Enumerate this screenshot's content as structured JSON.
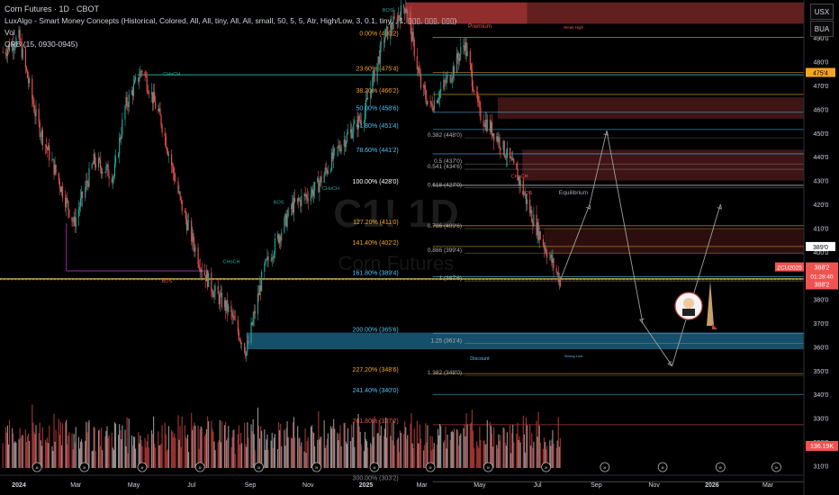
{
  "header": {
    "title": "Corn Futures · 1D · CBOT",
    "indicator1": "LuxAlgo - Smart Money Concepts (Historical, Colored, All, All, tiny, All, All, small, 50, 5, 5, Atr, High/Low, 3, 0.1, tiny, , 1, ▯▯▯, ▯▯▯, ▯▯▯)",
    "indicator2": "Vol",
    "indicator3": "ORB (15, 0930-0945)"
  },
  "currency_button": "USX",
  "unit_button": "BUA",
  "watermark": {
    "line1": "C1! 1D",
    "line2": "Corn Futures"
  },
  "colors": {
    "bull": "#26a69a",
    "bear": "#ef5350",
    "premium": "#b2383b",
    "discount": "#1e6a8c",
    "vol": "#d9d9d9",
    "fib_orange": "#f5a623",
    "fib_blue": "#4fc3f7",
    "eq_line": "#26a69a"
  },
  "chart_data": {
    "type": "candlestick",
    "x_labels": [
      "2024",
      "Mar",
      "May",
      "Jul",
      "Sep",
      "Nov",
      "2025",
      "Mar",
      "May",
      "Jul",
      "Sep",
      "Nov",
      "2026",
      "Mar"
    ],
    "y_ticks": [
      "500'0",
      "490'0",
      "480'0",
      "470'0",
      "460'0",
      "450'0",
      "440'0",
      "430'0",
      "420'0",
      "410'0",
      "400'0",
      "390'0",
      "380'0",
      "370'0",
      "360'0",
      "350'0",
      "340'0",
      "330'0",
      "320'0",
      "310'0"
    ],
    "ylim": [
      306,
      506
    ],
    "price_path": [
      {
        "date": "2023-12-15",
        "price": 484
      },
      {
        "date": "2024-01-01",
        "price": 490
      },
      {
        "date": "2024-01-20",
        "price": 455
      },
      {
        "date": "2024-02-12",
        "price": 430
      },
      {
        "date": "2024-02-28",
        "price": 412
      },
      {
        "date": "2024-03-20",
        "price": 438
      },
      {
        "date": "2024-04-10",
        "price": 432
      },
      {
        "date": "2024-04-22",
        "price": 461
      },
      {
        "date": "2024-05-10",
        "price": 477
      },
      {
        "date": "2024-05-30",
        "price": 455
      },
      {
        "date": "2024-06-20",
        "price": 420
      },
      {
        "date": "2024-07-10",
        "price": 395
      },
      {
        "date": "2024-07-25",
        "price": 383
      },
      {
        "date": "2024-08-10",
        "price": 375
      },
      {
        "date": "2024-08-28",
        "price": 358
      },
      {
        "date": "2024-09-15",
        "price": 392
      },
      {
        "date": "2024-10-15",
        "price": 419
      },
      {
        "date": "2024-11-10",
        "price": 427
      },
      {
        "date": "2024-12-05",
        "price": 445
      },
      {
        "date": "2024-12-30",
        "price": 458
      },
      {
        "date": "2025-01-20",
        "price": 490
      },
      {
        "date": "2025-02-12",
        "price": 504
      },
      {
        "date": "2025-02-28",
        "price": 470
      },
      {
        "date": "2025-03-10",
        "price": 461
      },
      {
        "date": "2025-04-01",
        "price": 475
      },
      {
        "date": "2025-04-15",
        "price": 488
      },
      {
        "date": "2025-05-01",
        "price": 458
      },
      {
        "date": "2025-05-20",
        "price": 448
      },
      {
        "date": "2025-06-10",
        "price": 432
      },
      {
        "date": "2025-06-25",
        "price": 415
      },
      {
        "date": "2025-07-10",
        "price": 401
      },
      {
        "date": "2025-07-25",
        "price": 388
      }
    ],
    "fib_levels": [
      {
        "label": "0.00% (490'2)",
        "price": 490.25,
        "color": "#f5a623"
      },
      {
        "label": "23.60% (475'4)",
        "price": 475.5,
        "color": "#f5a623"
      },
      {
        "label": "38.20% (466'2)",
        "price": 466.25,
        "color": "#f5a623"
      },
      {
        "label": "50.00% (458'6)",
        "price": 458.75,
        "color": "#4fc3f7"
      },
      {
        "label": "61.80% (451'4)",
        "price": 451.5,
        "color": "#4fc3f7"
      },
      {
        "label": "78.60% (441'2)",
        "price": 441.25,
        "color": "#4fc3f7"
      },
      {
        "label": "100.00% (428'0)",
        "price": 428,
        "color": "#ffffff"
      },
      {
        "label": "127.20% (411'0)",
        "price": 411,
        "color": "#f5a623"
      },
      {
        "label": "141.40% (402'2)",
        "price": 402.25,
        "color": "#f5a623"
      },
      {
        "label": "161.80% (389'4)",
        "price": 389.5,
        "color": "#4fc3f7"
      },
      {
        "label": "200.00% (365'6)",
        "price": 365.75,
        "color": "#4fc3f7"
      },
      {
        "label": "227.20% (348'6)",
        "price": 348.75,
        "color": "#f5a623"
      },
      {
        "label": "241.40% (340'0)",
        "price": 340,
        "color": "#4fc3f7"
      },
      {
        "label": "261.80% (327'2)",
        "price": 327.25,
        "color": "#ef5350"
      },
      {
        "label": "300.00% (303'2)",
        "price": 303.25,
        "color": "#888888"
      }
    ],
    "fib_levels_2": [
      {
        "label": "0.382 (448'0)",
        "price": 448.0
      },
      {
        "label": "0.5 (437'0)",
        "price": 437.0
      },
      {
        "label": "0.541 (434'6)",
        "price": 434.75
      },
      {
        "label": "0.618 (427'0)",
        "price": 427.0
      },
      {
        "label": "0.786 (409'6)",
        "price": 409.75
      },
      {
        "label": "0.886 (399'4)",
        "price": 399.5
      },
      {
        "label": "1 (387'6)",
        "price": 387.75
      },
      {
        "label": "1.25 (361'4)",
        "price": 361.5
      },
      {
        "label": "1.382 (348'0)",
        "price": 348.0
      }
    ],
    "zones": {
      "premium_label": "Premium",
      "weak_high_label": "Weak High",
      "equilibrium_label": "Equilibrium",
      "discount_label": "Discount",
      "strong_low_label": "Strong Low"
    },
    "structure_labels": [
      {
        "text": "CHoCH",
        "date": "2024-06-10",
        "price": 473,
        "color": "#26a69a"
      },
      {
        "text": "BOS",
        "date": "2024-06-05",
        "price": 386,
        "color": "#ef5350"
      },
      {
        "text": "CHoCH",
        "date": "2024-08-12",
        "price": 394,
        "color": "#26a69a"
      },
      {
        "text": "BOS",
        "date": "2024-10-01",
        "price": 419,
        "color": "#26a69a"
      },
      {
        "text": "CHoCH",
        "date": "2024-11-25",
        "price": 425,
        "color": "#26a69a"
      },
      {
        "text": "BOS",
        "date": "2025-01-24",
        "price": 500,
        "color": "#26a69a"
      },
      {
        "text": "CHoCH",
        "date": "2025-06-12",
        "price": 430,
        "color": "#ef5350"
      },
      {
        "text": "BOS",
        "date": "2025-06-20",
        "price": 423,
        "color": "#ef5350"
      }
    ],
    "projection": [
      {
        "date": "2025-07-25",
        "price": 388
      },
      {
        "date": "2025-08-25",
        "price": 420
      },
      {
        "date": "2025-09-12",
        "price": 451
      },
      {
        "date": "2025-10-20",
        "price": 370
      },
      {
        "date": "2025-11-20",
        "price": 352
      },
      {
        "date": "2026-01-10",
        "price": 420
      }
    ],
    "volume_seed": 7
  },
  "price_scale": {
    "eq_label": "475'4",
    "level_label": "389'0",
    "symbol": "ZCU2025",
    "last_price": "388'2",
    "countdown": "01:28:40",
    "last_price_2": "388'2",
    "volume": "136.19K"
  },
  "mascot_icon": "rocket-mascot-icon",
  "event_icon": "dividend-event-icon"
}
